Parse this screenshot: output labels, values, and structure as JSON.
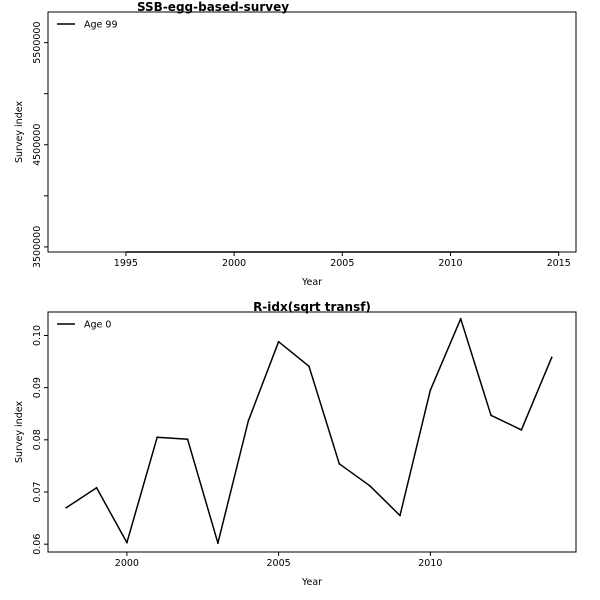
{
  "chart_data": [
    {
      "type": "line",
      "title": "SSB-egg-based-survey",
      "xlabel": "Year",
      "ylabel": "Survey index",
      "xlim": [
        1991.4,
        2015.8
      ],
      "ylim": [
        3450000,
        5800000
      ],
      "xticks": [
        1995,
        2000,
        2005,
        2010,
        2015
      ],
      "xtick_labels": [
        "1995",
        "2000",
        "2005",
        "2010",
        "2015"
      ],
      "yticks": [
        3500000,
        4000000,
        4500000,
        5000000,
        5500000
      ],
      "ytick_labels": [
        "3500000",
        "",
        "4500000",
        "",
        "5500000"
      ],
      "grid": false,
      "legend_position": "top-left",
      "series": [
        {
          "name": "Age 99",
          "color": "#000000",
          "x": [],
          "y": []
        }
      ]
    },
    {
      "type": "line",
      "title": "R-idx(sqrt transf)",
      "xlabel": "Year",
      "ylabel": "Survey index",
      "xlim": [
        1997.4,
        2014.8
      ],
      "ylim": [
        0.0585,
        0.1045
      ],
      "xticks": [
        2000,
        2005,
        2010
      ],
      "xtick_labels": [
        "2000",
        "2005",
        "2010"
      ],
      "yticks": [
        0.06,
        0.07,
        0.08,
        0.09,
        0.1
      ],
      "ytick_labels": [
        "0.06",
        "0.07",
        "0.08",
        "0.09",
        "0.10"
      ],
      "grid": false,
      "legend_position": "top-left",
      "series": [
        {
          "name": "Age 0",
          "color": "#000000",
          "x": [
            1998,
            1999,
            2000,
            2001,
            2002,
            2003,
            2004,
            2005,
            2006,
            2007,
            2008,
            2009,
            2010,
            2011,
            2012,
            2013,
            2014
          ],
          "y": [
            0.067,
            0.0708,
            0.0603,
            0.0805,
            0.0801,
            0.0602,
            0.0836,
            0.0988,
            0.0941,
            0.0754,
            0.0712,
            0.0655,
            0.0895,
            0.1032,
            0.0847,
            0.0819,
            0.0958
          ]
        }
      ]
    }
  ]
}
